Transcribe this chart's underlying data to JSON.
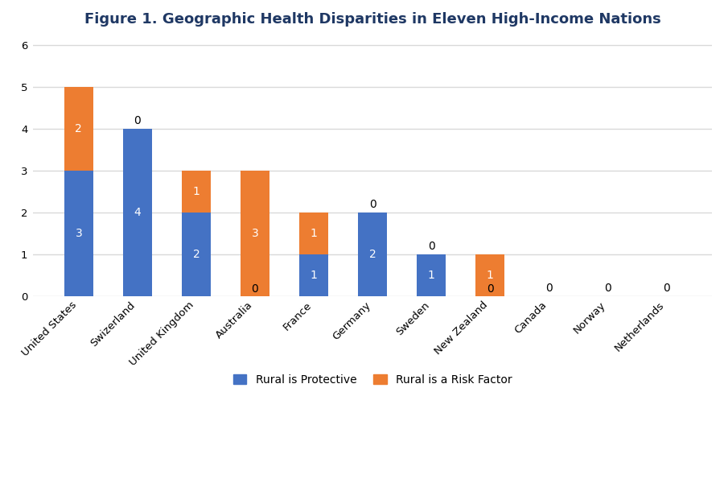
{
  "title": "Figure 1. Geographic Health Disparities in Eleven High-Income Nations",
  "categories": [
    "United States",
    "Swizerland",
    "United Kingdom",
    "Australia",
    "France",
    "Germany",
    "Sweden",
    "New Zealand",
    "Canada",
    "Norway",
    "Netherlands"
  ],
  "protective": [
    3,
    4,
    2,
    0,
    1,
    2,
    1,
    0,
    0,
    0,
    0
  ],
  "risk": [
    2,
    0,
    1,
    3,
    1,
    0,
    0,
    1,
    0,
    0,
    0
  ],
  "bar_color_protective": "#4472C4",
  "bar_color_risk": "#ED7D31",
  "background_color": "#FFFFFF",
  "plot_bg_color": "#FFFFFF",
  "title_color": "#1F3864",
  "grid_color": "#D9D9D9",
  "label_color": "#000000",
  "ylim": [
    0,
    6.2
  ],
  "yticks": [
    0,
    1,
    2,
    3,
    4,
    5,
    6
  ],
  "legend_protective": "Rural is Protective",
  "legend_risk": "Rural is a Risk Factor",
  "title_fontsize": 13,
  "tick_fontsize": 9.5,
  "label_fontsize": 10,
  "bar_width": 0.5
}
